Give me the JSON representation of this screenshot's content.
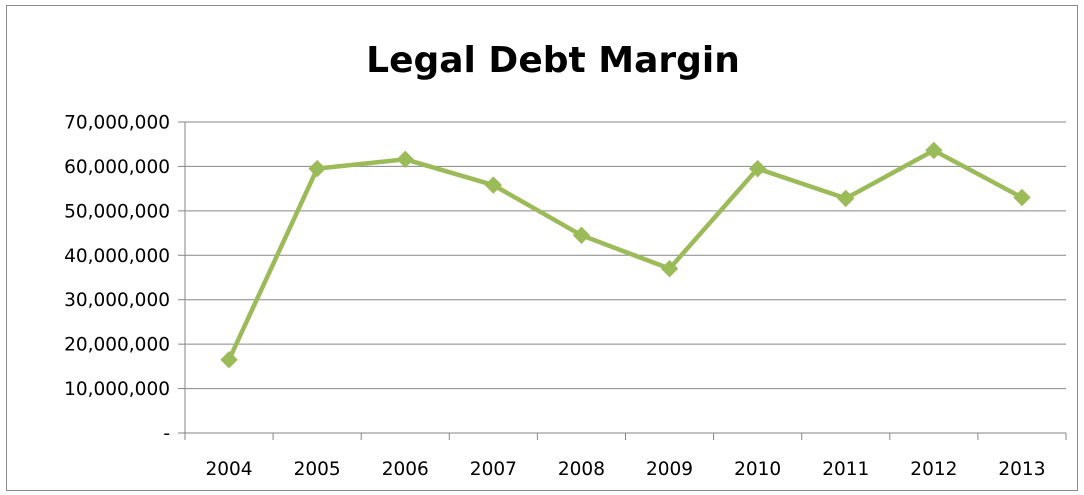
{
  "chart_data": {
    "type": "line",
    "title": "Legal Debt Margin",
    "xlabel": "",
    "ylabel": "",
    "categories": [
      "2004",
      "2005",
      "2006",
      "2007",
      "2008",
      "2009",
      "2010",
      "2011",
      "2012",
      "2013"
    ],
    "series": [
      {
        "values": [
          16500000,
          59500000,
          61600000,
          55800000,
          44500000,
          37000000,
          59500000,
          52800000,
          63600000,
          53000000
        ],
        "color": "#9bbb59",
        "marker": "diamond"
      }
    ],
    "ylim": [
      0,
      70000000
    ],
    "yticks": [
      0,
      10000000,
      20000000,
      30000000,
      40000000,
      50000000,
      60000000,
      70000000
    ],
    "ytick_labels": [
      "-",
      "10,000,000",
      "20,000,000",
      "30,000,000",
      "40,000,000",
      "50,000,000",
      "60,000,000",
      "70,000,000"
    ],
    "grid": true,
    "legend": "none"
  }
}
